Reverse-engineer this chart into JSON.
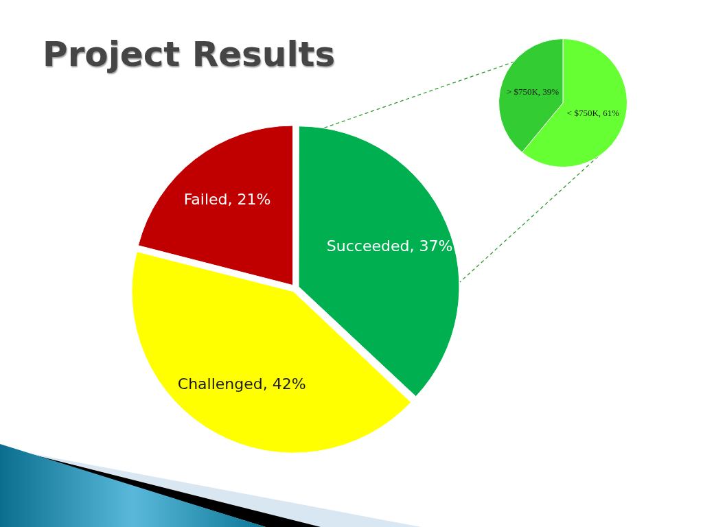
{
  "chart_data": [
    {
      "type": "pie",
      "title": "Project Results",
      "categories": [
        "Succeeded",
        "Challenged",
        "Failed"
      ],
      "values": [
        37,
        42,
        21
      ],
      "colors": [
        "#00b050",
        "#ffff00",
        "#c00000"
      ],
      "value_labels": [
        "37%",
        "42%",
        "21%"
      ]
    },
    {
      "type": "pie",
      "categories": [
        "< $750K",
        "> $750K"
      ],
      "values": [
        61,
        39
      ],
      "colors": [
        "#66ff33",
        "#33cc33"
      ],
      "value_labels": [
        "61%",
        "39%"
      ]
    }
  ]
}
